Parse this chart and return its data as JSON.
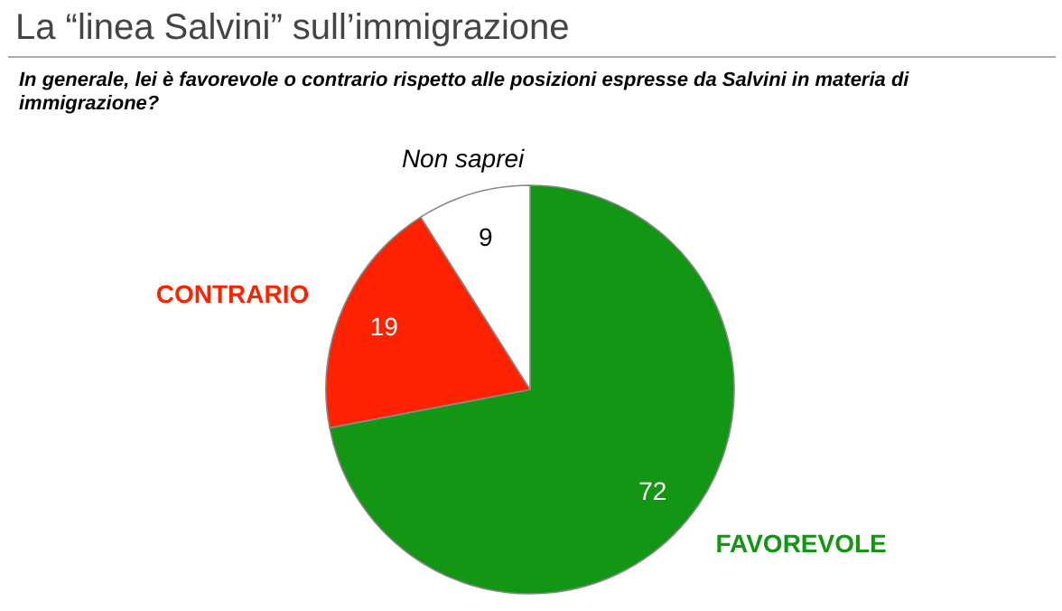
{
  "chart_data": {
    "type": "pie",
    "title": "La “linea Salvini” sull’immigrazione",
    "subtitle": "In generale, lei è favorevole o contrario rispetto alle posizioni espresse da Salvini in materia di immigrazione?",
    "categories": [
      "FAVOREVOLE",
      "CONTRARIO",
      "Non saprei"
    ],
    "values": [
      72,
      19,
      9
    ],
    "colors": [
      "#139613",
      "#ff2200",
      "#ffffff"
    ],
    "data_labels": true
  }
}
